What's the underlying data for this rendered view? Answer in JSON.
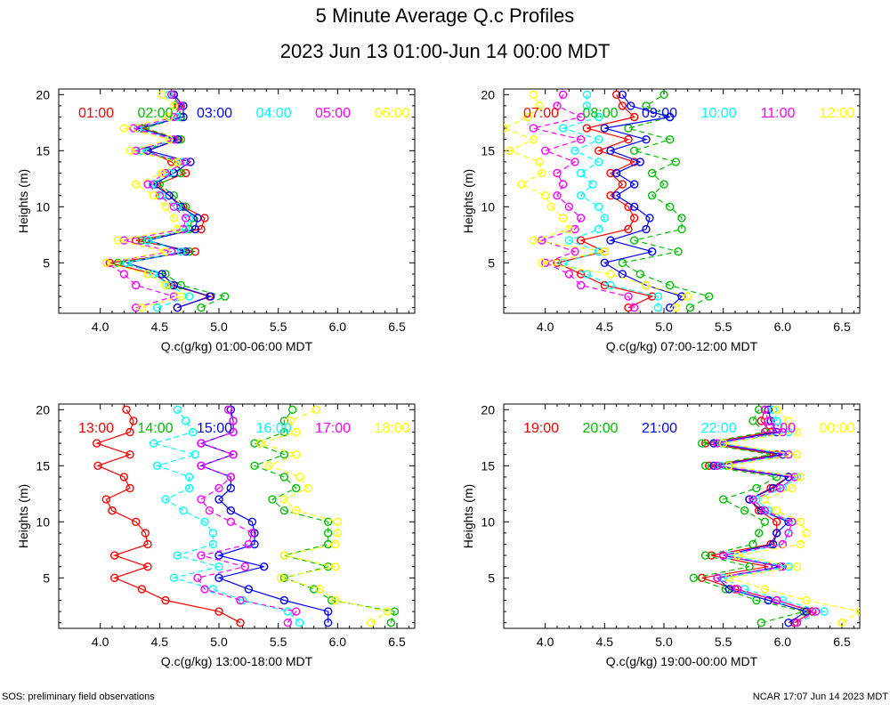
{
  "title": "5 Minute Average Q.c Profiles",
  "subtitle": "2023 Jun 13 01:00-Jun 14 00:00 MDT",
  "footer_left": "SOS: preliminary field observations",
  "footer_right": "NCAR 17:07 Jun 14 2023 MDT",
  "chart_data": [
    {
      "type": "line",
      "xlabel": "Q.c(g/kg) 01:00-06:00 MDT",
      "ylabel": "Heights (m)",
      "xlim": [
        3.65,
        6.65
      ],
      "ylim": [
        0.5,
        20.5
      ],
      "xticks": [
        "4.0",
        "4.5",
        "5.0",
        "5.5",
        "6.0",
        "6.5"
      ],
      "yticks": [
        "5",
        "10",
        "15",
        "20"
      ],
      "heights": [
        1,
        2,
        3,
        4,
        5,
        6,
        7,
        8,
        9,
        10,
        11,
        12,
        13,
        14,
        15,
        16,
        17,
        18,
        19,
        20
      ],
      "series": [
        {
          "name": "01:00",
          "color": "#ff0000",
          "values": [
            4.65,
            4.92,
            4.6,
            4.45,
            4.08,
            4.8,
            4.3,
            4.85,
            4.88,
            4.7,
            4.58,
            4.48,
            4.72,
            4.6,
            4.4,
            4.66,
            4.35,
            4.68,
            4.66,
            4.62
          ]
        },
        {
          "name": "02:00",
          "color": "#00c000",
          "values": [
            4.85,
            5.05,
            4.68,
            4.55,
            4.15,
            4.75,
            4.35,
            4.75,
            4.78,
            4.72,
            4.62,
            4.5,
            4.68,
            4.65,
            4.35,
            4.68,
            4.38,
            4.68,
            4.65,
            4.6
          ]
        },
        {
          "name": "03:00",
          "color": "#0000ff",
          "values": [
            4.65,
            4.93,
            4.62,
            4.52,
            4.22,
            4.72,
            4.4,
            4.8,
            4.82,
            4.68,
            4.58,
            4.45,
            4.62,
            4.76,
            4.4,
            4.65,
            4.32,
            4.7,
            4.7,
            4.62
          ]
        },
        {
          "name": "04:00",
          "color": "#00ffff",
          "values": [
            4.48,
            4.75,
            4.58,
            4.45,
            4.22,
            4.68,
            4.4,
            4.72,
            4.75,
            4.65,
            4.52,
            4.44,
            4.58,
            4.7,
            4.34,
            4.62,
            4.32,
            4.65,
            4.68,
            4.58
          ]
        },
        {
          "name": "05:00",
          "color": "#ff00ff",
          "values": [
            4.3,
            4.62,
            4.3,
            4.2,
            4.05,
            4.6,
            4.2,
            4.7,
            4.72,
            4.62,
            4.5,
            4.4,
            4.55,
            4.72,
            4.3,
            4.62,
            4.28,
            4.62,
            4.68,
            4.6
          ]
        },
        {
          "name": "06:00",
          "color": "#ffff00",
          "values": [
            4.35,
            4.68,
            4.55,
            4.4,
            4.05,
            4.55,
            4.15,
            4.65,
            4.62,
            4.55,
            4.45,
            4.3,
            4.52,
            4.65,
            4.25,
            4.58,
            4.2,
            4.58,
            4.62,
            4.52
          ]
        }
      ]
    },
    {
      "type": "line",
      "xlabel": "Q.c(g/kg) 07:00-12:00 MDT",
      "ylabel": "Heights (m)",
      "xlim": [
        3.65,
        6.65
      ],
      "ylim": [
        0.5,
        20.5
      ],
      "xticks": [
        "4.0",
        "4.5",
        "5.0",
        "5.5",
        "6.0",
        "6.5"
      ],
      "yticks": [
        "5",
        "10",
        "15",
        "20"
      ],
      "heights": [
        1,
        2,
        3,
        4,
        5,
        6,
        7,
        8,
        9,
        10,
        11,
        12,
        13,
        14,
        15,
        16,
        17,
        18,
        19,
        20
      ],
      "series": [
        {
          "name": "07:00",
          "color": "#ff0000",
          "values": [
            4.7,
            4.9,
            4.5,
            4.3,
            4.1,
            4.5,
            4.3,
            4.7,
            4.75,
            4.7,
            4.55,
            4.65,
            4.55,
            4.75,
            4.45,
            4.7,
            4.35,
            4.75,
            4.65,
            4.6
          ]
        },
        {
          "name": "08:00",
          "color": "#00c000",
          "values": [
            5.22,
            5.38,
            5.05,
            4.8,
            4.65,
            5.12,
            4.75,
            5.15,
            5.15,
            5.05,
            4.9,
            5.0,
            4.9,
            5.1,
            4.75,
            5.05,
            4.7,
            5.05,
            4.85,
            5.0
          ]
        },
        {
          "name": "09:00",
          "color": "#0000ff",
          "values": [
            5.05,
            5.15,
            4.85,
            4.65,
            4.5,
            4.9,
            4.55,
            4.85,
            4.88,
            4.75,
            4.6,
            4.75,
            4.6,
            4.8,
            4.55,
            4.85,
            4.5,
            5.05,
            4.72,
            4.65
          ]
        },
        {
          "name": "10:00",
          "color": "#00ffff",
          "values": [
            4.95,
            4.95,
            4.55,
            4.35,
            4.15,
            4.45,
            4.2,
            4.45,
            4.5,
            4.45,
            4.3,
            4.4,
            4.3,
            4.45,
            4.25,
            4.45,
            4.15,
            4.45,
            4.35,
            4.35
          ]
        },
        {
          "name": "11:00",
          "color": "#ff00ff",
          "values": [
            4.75,
            4.7,
            4.3,
            4.2,
            4.0,
            4.25,
            3.97,
            4.25,
            4.3,
            4.2,
            4.1,
            4.15,
            4.1,
            4.25,
            4.0,
            4.3,
            3.9,
            4.3,
            4.1,
            4.15
          ]
        },
        {
          "name": "12:00",
          "color": "#ffff00",
          "values": [
            5.1,
            5.2,
            4.85,
            4.55,
            3.97,
            4.5,
            3.9,
            4.2,
            4.15,
            4.05,
            4.0,
            3.8,
            3.97,
            3.95,
            3.7,
            3.9,
            3.65,
            3.85,
            3.95,
            3.9
          ]
        }
      ]
    },
    {
      "type": "line",
      "xlabel": "Q.c(g/kg) 13:00-18:00 MDT",
      "ylabel": "Heights (m)",
      "xlim": [
        3.65,
        6.65
      ],
      "ylim": [
        0.5,
        20.5
      ],
      "xticks": [
        "4.0",
        "4.5",
        "5.0",
        "5.5",
        "6.0",
        "6.5"
      ],
      "yticks": [
        "5",
        "10",
        "15",
        "20"
      ],
      "heights": [
        1,
        2,
        3,
        4,
        5,
        6,
        7,
        8,
        9,
        10,
        11,
        12,
        13,
        14,
        15,
        16,
        17,
        18,
        19,
        20
      ],
      "series": [
        {
          "name": "13:00",
          "color": "#ff0000",
          "values": [
            5.18,
            5.0,
            4.55,
            4.35,
            4.12,
            4.4,
            4.12,
            4.4,
            4.38,
            4.3,
            4.1,
            4.05,
            4.25,
            4.2,
            3.98,
            4.25,
            3.97,
            4.25,
            4.28,
            4.22
          ]
        },
        {
          "name": "14:00",
          "color": "#00c000",
          "values": [
            6.45,
            6.48,
            5.95,
            5.8,
            5.55,
            5.92,
            5.55,
            5.92,
            5.92,
            5.92,
            5.55,
            5.45,
            5.65,
            5.55,
            5.3,
            5.55,
            5.3,
            5.55,
            5.55,
            5.62
          ]
        },
        {
          "name": "15:00",
          "color": "#0000ff",
          "values": [
            5.92,
            5.92,
            5.55,
            5.25,
            5.0,
            5.38,
            5.0,
            5.3,
            5.3,
            5.28,
            5.1,
            5.0,
            5.1,
            5.1,
            4.85,
            5.12,
            4.85,
            5.12,
            5.12,
            5.1
          ]
        },
        {
          "name": "16:00",
          "color": "#00ffff",
          "values": [
            5.68,
            5.58,
            5.2,
            4.95,
            4.62,
            5.0,
            4.65,
            4.95,
            4.95,
            4.88,
            4.7,
            4.55,
            4.75,
            4.75,
            4.48,
            4.8,
            4.45,
            4.78,
            4.72,
            4.65
          ]
        },
        {
          "name": "17:00",
          "color": "#ff00ff",
          "values": [
            5.58,
            5.65,
            5.18,
            4.88,
            4.82,
            5.22,
            4.85,
            5.25,
            5.28,
            5.1,
            4.92,
            4.85,
            5.0,
            5.1,
            4.85,
            5.12,
            4.85,
            5.12,
            5.12,
            5.08
          ]
        },
        {
          "name": "18:00",
          "color": "#ffff00",
          "values": [
            6.28,
            6.42,
            5.98,
            5.85,
            5.52,
            5.98,
            5.55,
            5.98,
            6.0,
            6.0,
            5.65,
            5.55,
            5.75,
            5.68,
            5.42,
            5.65,
            5.35,
            5.65,
            5.6,
            5.82
          ]
        }
      ]
    },
    {
      "type": "line",
      "xlabel": "Q.c(g/kg) 19:00-00:00 MDT",
      "ylabel": "Heights (m)",
      "xlim": [
        3.65,
        6.65
      ],
      "ylim": [
        0.5,
        20.5
      ],
      "xticks": [
        "4.0",
        "4.5",
        "5.0",
        "5.5",
        "6.0",
        "6.5"
      ],
      "yticks": [
        "5",
        "10",
        "15",
        "20"
      ],
      "heights": [
        1,
        2,
        3,
        4,
        5,
        6,
        7,
        8,
        9,
        10,
        11,
        12,
        13,
        14,
        15,
        16,
        17,
        18,
        19,
        20
      ],
      "series": [
        {
          "name": "19:00",
          "color": "#ff0000",
          "values": [
            6.1,
            6.25,
            5.95,
            5.6,
            5.32,
            5.88,
            5.4,
            5.9,
            5.95,
            5.95,
            5.8,
            5.72,
            5.9,
            6.05,
            5.38,
            5.95,
            5.35,
            5.9,
            5.82,
            5.85
          ]
        },
        {
          "name": "20:00",
          "color": "#00c000",
          "values": [
            5.82,
            6.18,
            5.78,
            5.52,
            5.25,
            5.72,
            5.35,
            5.75,
            5.8,
            5.85,
            5.68,
            5.5,
            5.78,
            5.95,
            5.35,
            5.9,
            5.32,
            5.85,
            5.75,
            5.8
          ]
        },
        {
          "name": "21:00",
          "color": "#0000ff",
          "values": [
            6.05,
            6.2,
            5.88,
            5.55,
            5.45,
            5.98,
            5.5,
            5.92,
            5.95,
            6.05,
            5.82,
            5.72,
            5.92,
            6.05,
            5.42,
            6.0,
            5.42,
            5.95,
            5.9,
            5.88
          ]
        },
        {
          "name": "22:00",
          "color": "#00ffff",
          "values": [
            6.12,
            6.35,
            6.0,
            5.68,
            5.5,
            6.05,
            5.55,
            6.0,
            6.05,
            6.08,
            5.88,
            5.78,
            6.0,
            6.12,
            5.48,
            6.05,
            5.48,
            6.05,
            5.95,
            5.92
          ]
        },
        {
          "name": "23:00",
          "color": "#ff00ff",
          "values": [
            6.12,
            6.28,
            5.95,
            5.62,
            5.45,
            6.0,
            5.5,
            6.0,
            6.05,
            6.08,
            5.85,
            5.75,
            5.98,
            6.1,
            5.45,
            6.05,
            5.45,
            6.0,
            5.88,
            5.85
          ]
        },
        {
          "name": "00:00",
          "color": "#ffff00",
          "values": [
            6.5,
            6.65,
            6.2,
            5.85,
            5.55,
            6.12,
            5.62,
            6.15,
            6.2,
            6.15,
            5.95,
            5.85,
            6.08,
            6.15,
            5.55,
            6.12,
            5.5,
            6.12,
            6.05,
            5.95
          ]
        }
      ]
    }
  ]
}
